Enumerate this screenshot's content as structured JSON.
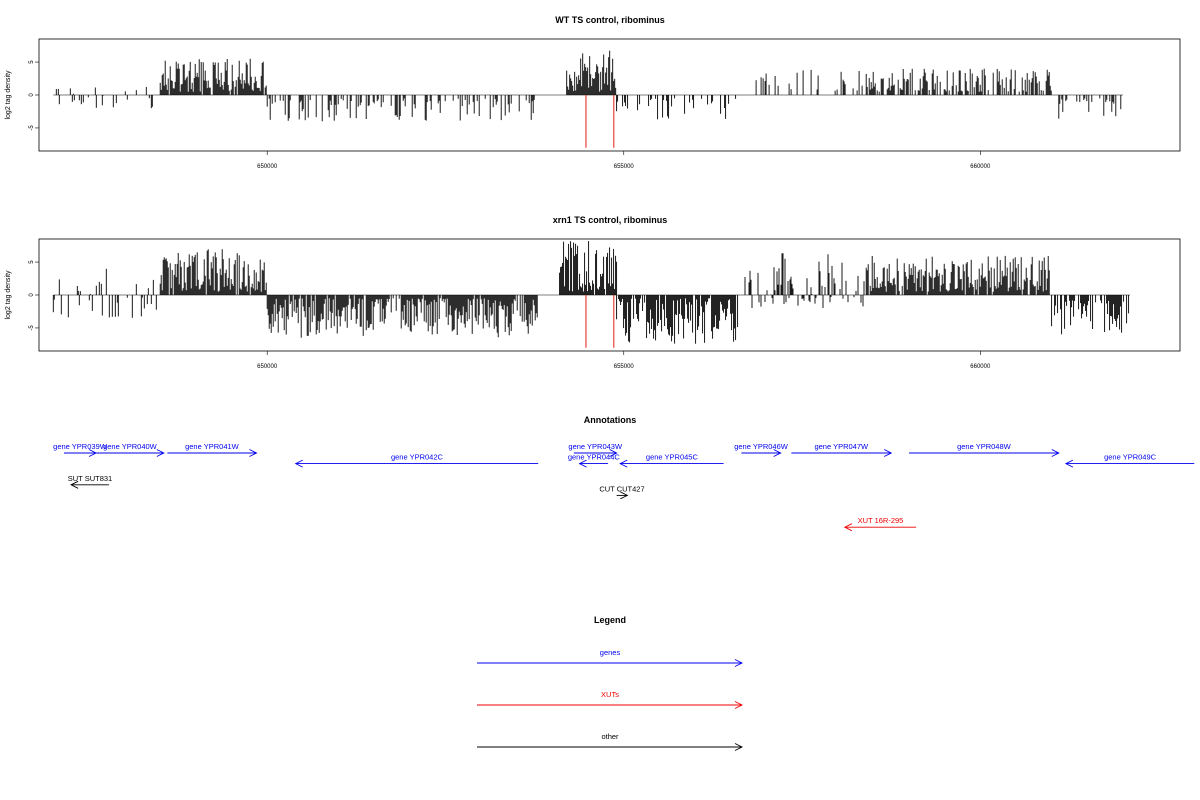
{
  "chart_data": [
    {
      "type": "bar",
      "title": "WT TS control, ribominus",
      "ylabel": "log2 tag density",
      "xlim": [
        646800,
        662800
      ],
      "ylim": [
        -8.5,
        8.5
      ],
      "xticks": [
        650000,
        655000,
        660000
      ],
      "yticks": [
        -5,
        0,
        5
      ],
      "segments": [
        {
          "start": 647000,
          "end": 648500,
          "min": -2,
          "max": 2.5,
          "density": 0.18,
          "seed": 11
        },
        {
          "start": 648500,
          "end": 650000,
          "min": 0.5,
          "max": 5.5,
          "density": 0.95,
          "seed": 12
        },
        {
          "start": 650000,
          "end": 653800,
          "min": -4,
          "max": -0.5,
          "density": 0.35,
          "seed": 13
        },
        {
          "start": 654200,
          "end": 654900,
          "min": 0.5,
          "max": 7.5,
          "density": 0.95,
          "seed": 14
        },
        {
          "start": 654900,
          "end": 656600,
          "min": -4,
          "max": -0.5,
          "density": 0.3,
          "seed": 15
        },
        {
          "start": 656800,
          "end": 658400,
          "min": 0.5,
          "max": 4,
          "density": 0.2,
          "seed": 16
        },
        {
          "start": 658400,
          "end": 661000,
          "min": 0.5,
          "max": 4,
          "density": 0.6,
          "seed": 17
        },
        {
          "start": 661100,
          "end": 662000,
          "min": -4,
          "max": -0.5,
          "density": 0.35,
          "seed": 18
        }
      ],
      "markers": [
        {
          "x": 654470,
          "value": -8,
          "color": "#e8413a"
        },
        {
          "x": 654860,
          "value": -8,
          "color": "#e8413a"
        }
      ]
    },
    {
      "type": "bar",
      "title": "xrn1 TS control, ribominus",
      "ylabel": "log2 tag density",
      "xlim": [
        646800,
        662800
      ],
      "ylim": [
        -8.5,
        8.5
      ],
      "xticks": [
        650000,
        655000,
        660000
      ],
      "yticks": [
        -5,
        0,
        5
      ],
      "segments": [
        {
          "start": 647000,
          "end": 648500,
          "min": -3.5,
          "max": 4.5,
          "density": 0.3,
          "seed": 21
        },
        {
          "start": 648500,
          "end": 650000,
          "min": 0.5,
          "max": 7,
          "density": 0.95,
          "seed": 22
        },
        {
          "start": 650000,
          "end": 653800,
          "min": -6.5,
          "max": -0.5,
          "density": 0.9,
          "seed": 23
        },
        {
          "start": 654100,
          "end": 654900,
          "min": 0.5,
          "max": 8.5,
          "density": 0.95,
          "seed": 24
        },
        {
          "start": 654900,
          "end": 656600,
          "min": -7.5,
          "max": -0.5,
          "density": 0.9,
          "seed": 25
        },
        {
          "start": 656700,
          "end": 658400,
          "min": -2,
          "max": 6.5,
          "density": 0.55,
          "seed": 26
        },
        {
          "start": 658400,
          "end": 661000,
          "min": 0.5,
          "max": 6,
          "density": 0.9,
          "seed": 27
        },
        {
          "start": 661000,
          "end": 662100,
          "min": -6,
          "max": -0.5,
          "density": 0.6,
          "seed": 28
        }
      ],
      "markers": [
        {
          "x": 654470,
          "value": -8,
          "color": "#e8413a"
        },
        {
          "x": 654860,
          "value": -8,
          "color": "#e8413a"
        }
      ]
    }
  ],
  "annotations": {
    "title": "Annotations",
    "colors": {
      "genes": "#0000ee",
      "XUTs": "#ee0000",
      "other": "#000000"
    },
    "features": [
      {
        "label": "gene YPR039W",
        "start": 647150,
        "end": 647600,
        "strand": "+",
        "row": 0,
        "kind": "genes"
      },
      {
        "label": "gene YPR040W",
        "start": 647600,
        "end": 648550,
        "strand": "+",
        "row": 0,
        "kind": "genes"
      },
      {
        "label": "gene YPR041W",
        "start": 648600,
        "end": 649850,
        "strand": "+",
        "row": 0,
        "kind": "genes"
      },
      {
        "label": "gene YPR042C",
        "start": 650400,
        "end": 653800,
        "strand": "-",
        "row": 1,
        "kind": "genes"
      },
      {
        "label": "gene YPR043W",
        "start": 654300,
        "end": 654900,
        "strand": "+",
        "row": 0,
        "kind": "genes"
      },
      {
        "label": "gene YPR044C",
        "start": 654380,
        "end": 654780,
        "strand": "-",
        "row": 1,
        "kind": "genes"
      },
      {
        "label": "gene YPR045C",
        "start": 654950,
        "end": 656400,
        "strand": "-",
        "row": 1,
        "kind": "genes"
      },
      {
        "label": "gene YPR046W",
        "start": 656650,
        "end": 657200,
        "strand": "+",
        "row": 0,
        "kind": "genes"
      },
      {
        "label": "gene YPR047W",
        "start": 657350,
        "end": 658750,
        "strand": "+",
        "row": 0,
        "kind": "genes"
      },
      {
        "label": "gene YPR048W",
        "start": 659000,
        "end": 661100,
        "strand": "+",
        "row": 0,
        "kind": "genes"
      },
      {
        "label": "gene YPR049C",
        "start": 661200,
        "end": 663000,
        "strand": "-",
        "row": 1,
        "kind": "genes"
      },
      {
        "label": "SUT SUT831",
        "start": 647250,
        "end": 647780,
        "strand": "-",
        "row": 3,
        "kind": "other"
      },
      {
        "label": "CUT CUT427",
        "start": 654900,
        "end": 655050,
        "strand": "+",
        "row": 4,
        "kind": "other"
      },
      {
        "label": "XUT 16R-295",
        "start": 658100,
        "end": 659100,
        "strand": "-",
        "row": 7,
        "kind": "XUTs"
      }
    ]
  },
  "legend": {
    "title": "Legend",
    "items": [
      {
        "label": "genes",
        "color": "#0000ee"
      },
      {
        "label": "XUTs",
        "color": "#ee0000"
      },
      {
        "label": "other",
        "color": "#000000"
      }
    ]
  }
}
